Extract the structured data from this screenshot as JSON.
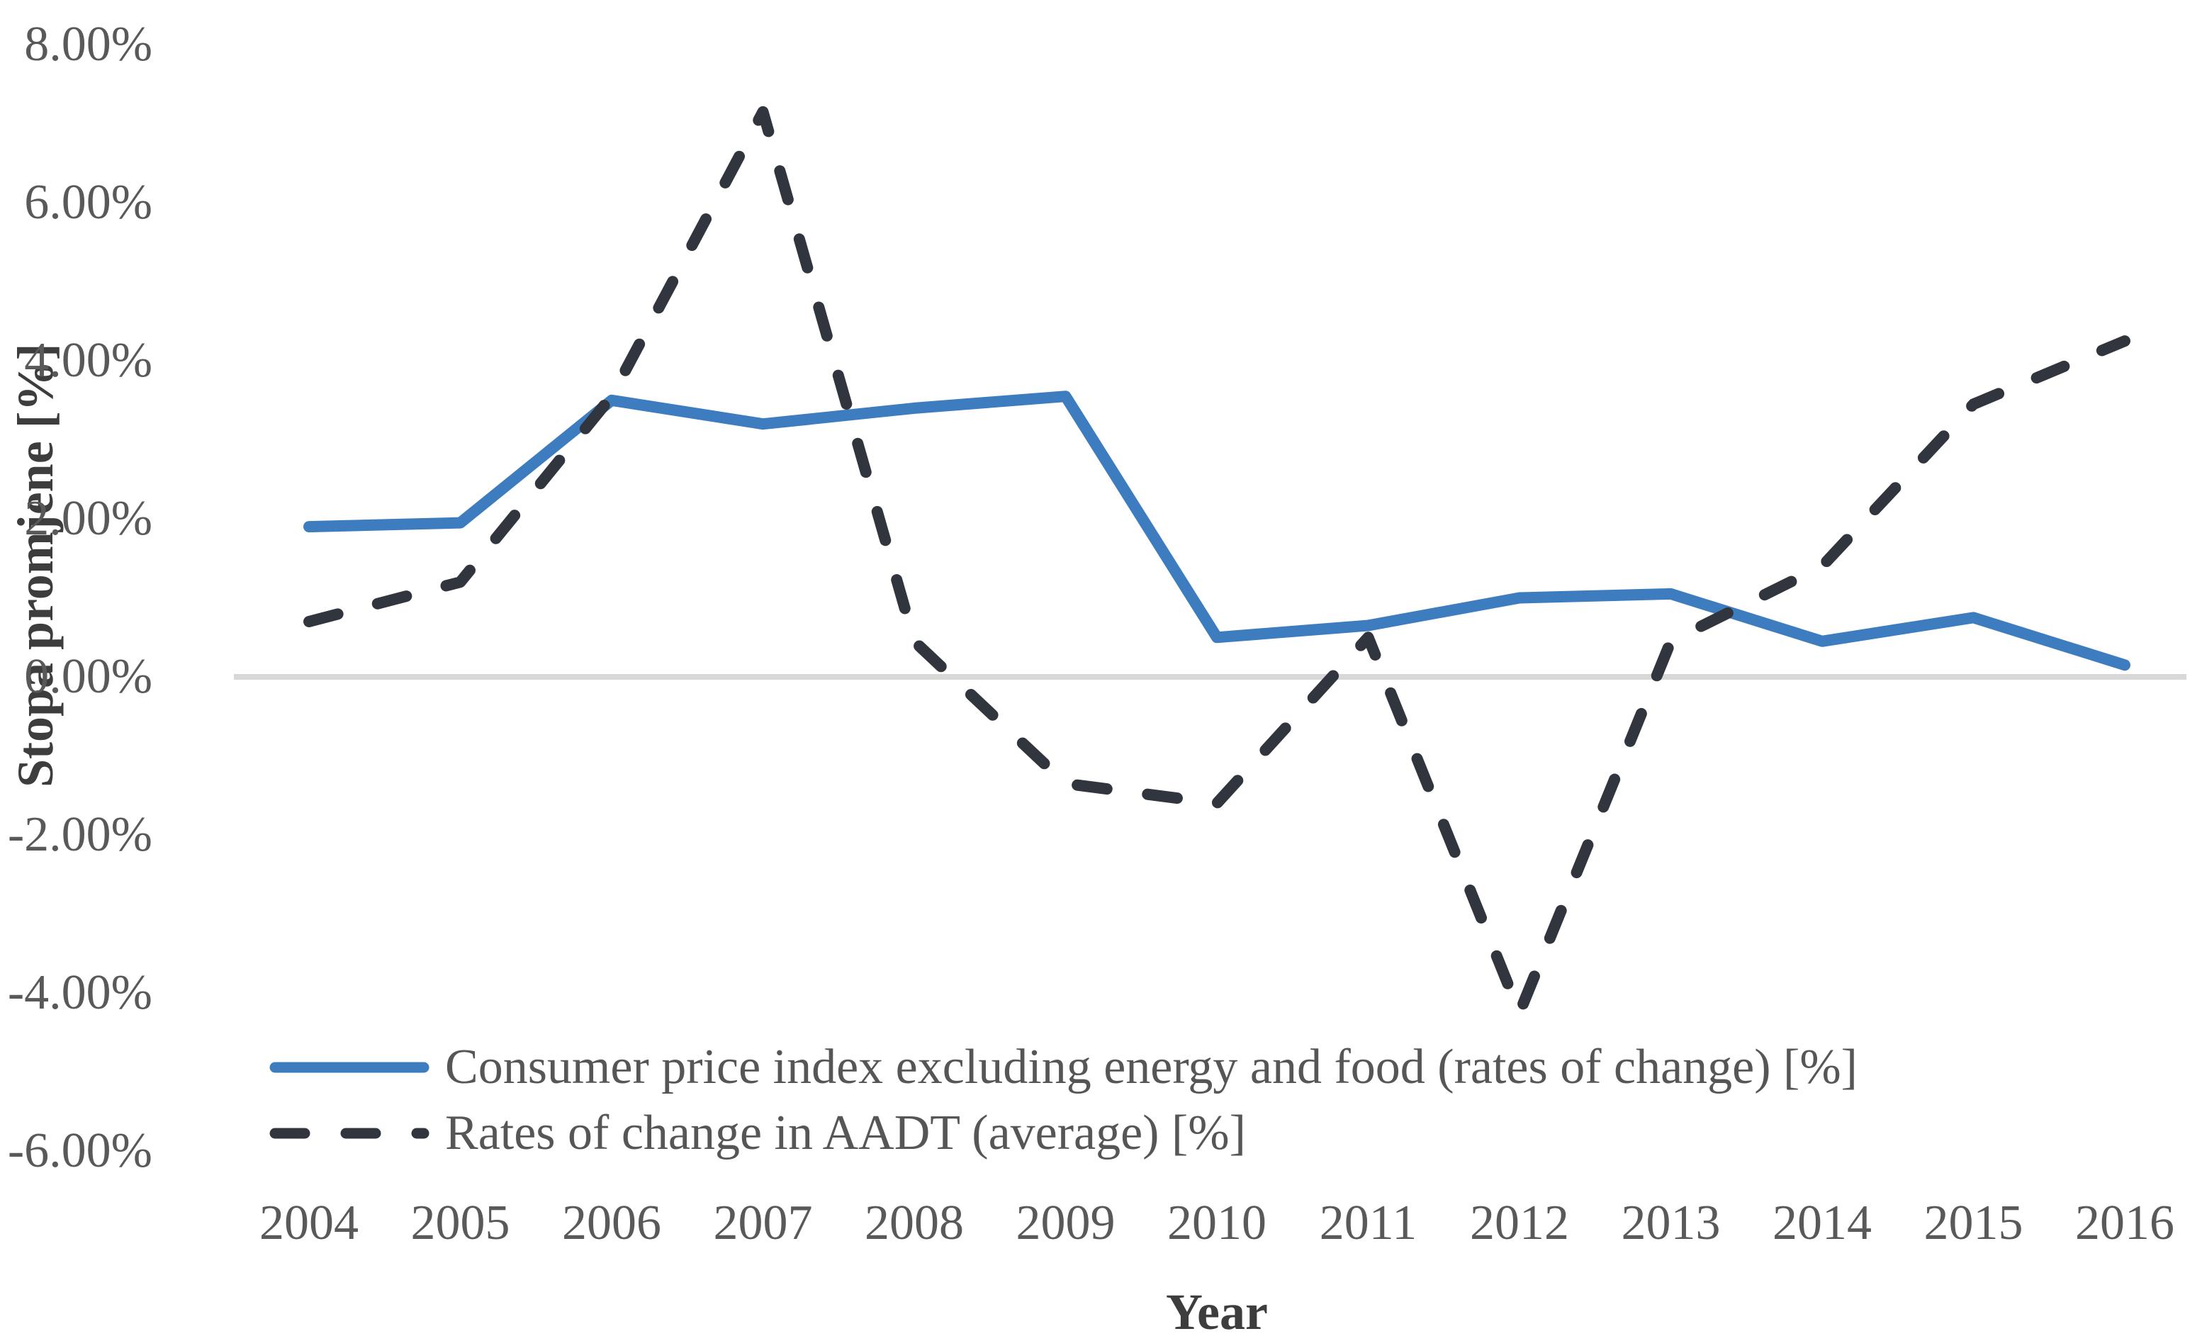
{
  "chart_data": {
    "type": "line",
    "title": "",
    "xlabel": "Year",
    "ylabel": "Stopa promjene [%]",
    "categories": [
      "2004",
      "2005",
      "2006",
      "2007",
      "2008",
      "2009",
      "2010",
      "2011",
      "2012",
      "2013",
      "2014",
      "2015",
      "2016"
    ],
    "y_ticks": [
      "8.00%",
      "6.00%",
      "4.00%",
      "2.00%",
      "0.00%",
      "-2.00%",
      "-4.00%",
      "-6.00%"
    ],
    "ylim": [
      -6.8,
      8.6
    ],
    "grid": false,
    "zero_line": true,
    "legend_position": "bottom-left",
    "colors": {
      "axis_line": "#d8d8d8",
      "tick_text": "#595959",
      "title_text": "#3d3d3d",
      "background": "#ffffff"
    },
    "series": [
      {
        "name": "Consumer price index excluding energy and food (rates of change) [%]",
        "style": "solid",
        "color": "#3d7dbf",
        "values": [
          1.9,
          1.95,
          3.5,
          3.2,
          3.4,
          3.55,
          0.5,
          0.65,
          1.0,
          1.05,
          0.45,
          0.75,
          0.15
        ]
      },
      {
        "name": "Rates of change in AADT (average) [%]",
        "style": "dashed",
        "color": "#31353e",
        "values": [
          0.7,
          1.2,
          3.55,
          7.15,
          0.45,
          -1.35,
          -1.6,
          0.5,
          -4.25,
          0.45,
          1.4,
          3.45,
          4.25
        ]
      }
    ]
  }
}
